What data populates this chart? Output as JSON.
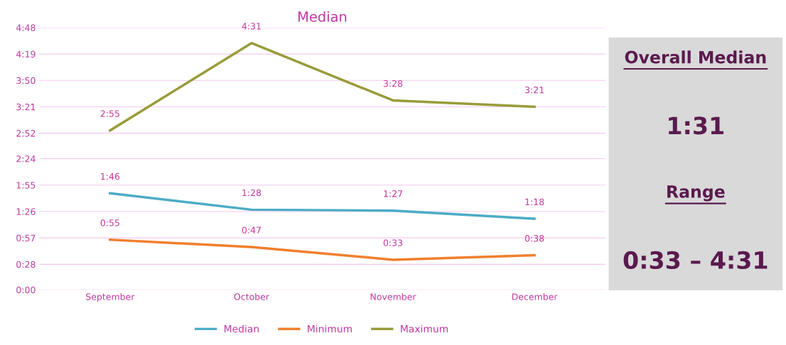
{
  "chart_data": {
    "type": "line",
    "title": "Median",
    "categories": [
      "September",
      "October",
      "November",
      "December"
    ],
    "series": [
      {
        "name": "Median",
        "color": "#4bacc6",
        "values": [
          106,
          88,
          87,
          78
        ],
        "value_labels": [
          "1:46",
          "1:28",
          "1:27",
          "1:18"
        ]
      },
      {
        "name": "Minimum",
        "color": "#f07f2e",
        "values": [
          55,
          47,
          33,
          38
        ],
        "value_labels": [
          "0:55",
          "0:47",
          "0:33",
          "0:38"
        ]
      },
      {
        "name": "Maximum",
        "color": "#9a9b3a",
        "values": [
          175,
          271,
          208,
          201
        ],
        "value_labels": [
          "2:55",
          "4:31",
          "3:28",
          "3:21"
        ]
      }
    ],
    "ylim": [
      0,
      288
    ],
    "yticks": [
      {
        "value": 0,
        "label": "0:00"
      },
      {
        "value": 28,
        "label": "0:28"
      },
      {
        "value": 57,
        "label": "0:57"
      },
      {
        "value": 86,
        "label": "1:26"
      },
      {
        "value": 115,
        "label": "1:55"
      },
      {
        "value": 144,
        "label": "2:24"
      },
      {
        "value": 172,
        "label": "2:52"
      },
      {
        "value": 201,
        "label": "3:21"
      },
      {
        "value": 230,
        "label": "3:50"
      },
      {
        "value": 259,
        "label": "4:19"
      },
      {
        "value": 288,
        "label": "4:48"
      }
    ],
    "grid": "y",
    "legend": "bottom",
    "marker": "none",
    "line_style": "solid",
    "annotations": [
      "Overall Median",
      "1:31",
      "Range",
      "0:33 – 4:31"
    ]
  }
}
